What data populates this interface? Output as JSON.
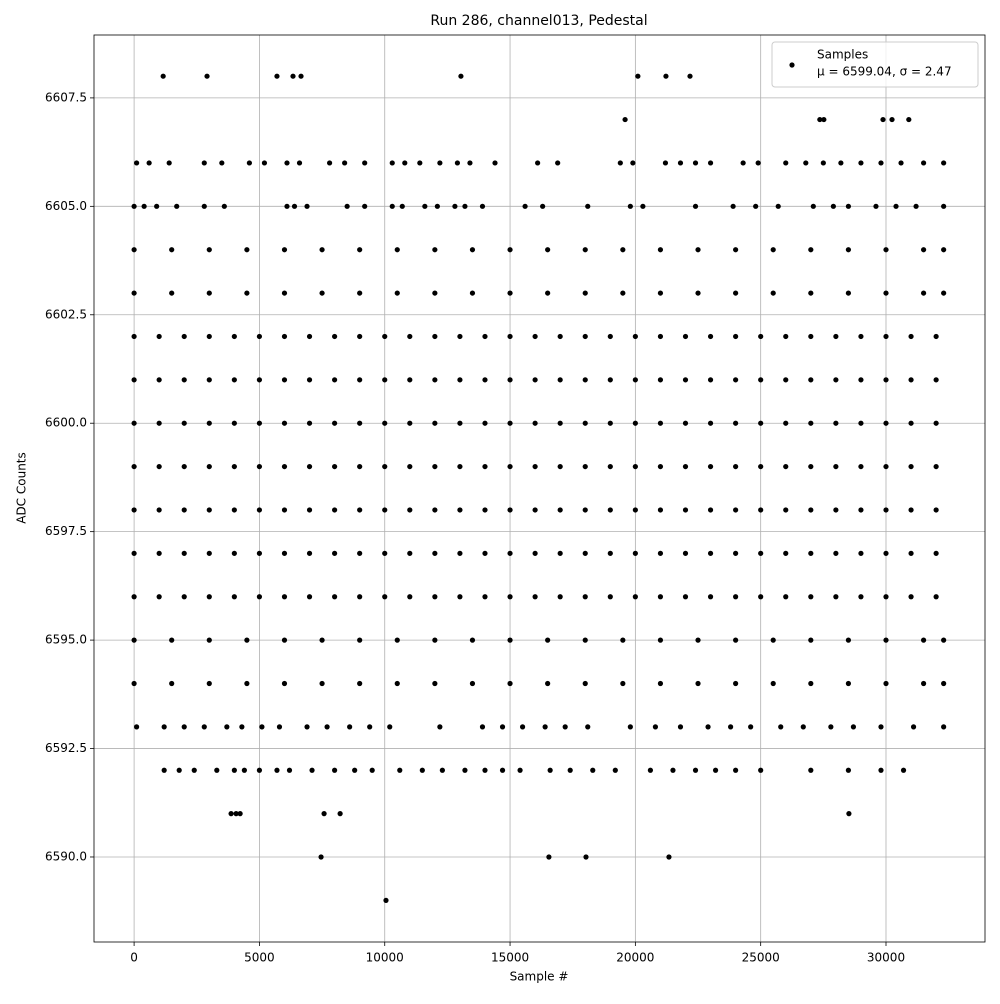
{
  "chart_data": {
    "type": "scatter",
    "title": "Run 286, channel013, Pedestal",
    "x_label": "Sample #",
    "y_label": "ADC Counts",
    "xlim": [
      -1600,
      33950
    ],
    "ylim": [
      6588.04,
      6608.95
    ],
    "xticks": [
      0,
      5000,
      10000,
      15000,
      20000,
      25000,
      30000
    ],
    "yticks": [
      {
        "value": 6590,
        "label": "6590.0"
      },
      6592.5,
      {
        "value": 6595,
        "label": "6595.0"
      },
      6597.5,
      {
        "value": 6600,
        "label": "6600.0"
      },
      6602.5,
      {
        "value": 6605,
        "label": "6605.0"
      },
      6607.5
    ],
    "grid": true,
    "legend": "upper right",
    "annotation": "μ = 6599.04, σ = 2.47",
    "x": [
      0,
      1000,
      2000,
      3000,
      4000,
      5000,
      6000,
      7000,
      8000,
      9000,
      10000,
      11000,
      12000,
      13000,
      14000,
      15000,
      16000,
      17000,
      18000,
      19000,
      20000,
      21000,
      22000,
      23000,
      24000,
      25000,
      26000,
      27000,
      28000,
      29000,
      30000,
      31000,
      32000,
      0,
      1000,
      2000,
      3000,
      4000,
      5000,
      6000,
      7000,
      8000,
      9000,
      10000,
      11000,
      12000,
      13000,
      14000,
      15000,
      16000,
      17000,
      18000,
      19000,
      20000,
      21000,
      22000,
      23000,
      24000,
      25000,
      26000,
      27000,
      28000,
      29000,
      30000,
      31000,
      32000,
      0,
      1000,
      2000,
      3000,
      4000,
      5000,
      6000,
      7000,
      8000,
      9000,
      10000,
      11000,
      12000,
      13000,
      14000,
      15000,
      16000,
      17000,
      18000,
      19000,
      20000,
      21000,
      22000,
      23000,
      24000,
      25000,
      26000,
      27000,
      28000,
      29000,
      30000,
      31000,
      32000,
      0,
      1000,
      2000,
      3000,
      4000,
      5000,
      6000,
      7000,
      8000,
      9000,
      10000,
      11000,
      12000,
      13000,
      14000,
      15000,
      16000,
      17000,
      18000,
      19000,
      20000,
      21000,
      22000,
      23000,
      24000,
      25000,
      26000,
      27000,
      28000,
      29000,
      30000,
      31000,
      32000,
      0,
      1000,
      2000,
      3000,
      4000,
      5000,
      6000,
      7000,
      8000,
      9000,
      10000,
      11000,
      12000,
      13000,
      14000,
      15000,
      16000,
      17000,
      18000,
      19000,
      20000,
      21000,
      22000,
      23000,
      24000,
      25000,
      26000,
      27000,
      28000,
      29000,
      30000,
      31000,
      32000,
      0,
      1000,
      2000,
      3000,
      4000,
      5000,
      6000,
      7000,
      8000,
      9000,
      10000,
      11000,
      12000,
      13000,
      14000,
      15000,
      16000,
      17000,
      18000,
      19000,
      20000,
      21000,
      22000,
      23000,
      24000,
      25000,
      26000,
      27000,
      28000,
      29000,
      30000,
      31000,
      32000,
      0,
      1000,
      2000,
      3000,
      4000,
      5000,
      6000,
      7000,
      8000,
      9000,
      10000,
      11000,
      12000,
      13000,
      14000,
      15000,
      16000,
      17000,
      18000,
      19000,
      20000,
      21000,
      22000,
      23000,
      24000,
      25000,
      26000,
      27000,
      28000,
      29000,
      30000,
      31000,
      32000,
      0,
      1500,
      3000,
      4500,
      6000,
      7500,
      9000,
      10500,
      12000,
      13500,
      15000,
      16500,
      18000,
      19500,
      21000,
      22500,
      24000,
      25500,
      27000,
      28500,
      30000,
      31500,
      32300,
      0,
      1500,
      3000,
      4500,
      6000,
      7500,
      9000,
      10500,
      12000,
      13500,
      15000,
      16500,
      18000,
      19500,
      21000,
      22500,
      24000,
      25500,
      27000,
      28500,
      30000,
      31500,
      32300,
      0,
      1500,
      3000,
      4500,
      6000,
      7500,
      9000,
      10500,
      12000,
      13500,
      15000,
      16500,
      18000,
      19500,
      21000,
      22500,
      24000,
      25500,
      27000,
      28500,
      30000,
      31500,
      32300,
      0,
      1500,
      3000,
      4500,
      6000,
      7500,
      9000,
      10500,
      12000,
      13500,
      15000,
      16500,
      18000,
      19500,
      21000,
      22500,
      24000,
      25500,
      27000,
      28500,
      30000,
      31500,
      32300,
      0,
      400,
      900,
      1700,
      2800,
      3600,
      6100,
      6400,
      6900,
      8500,
      9200,
      10300,
      10700,
      11600,
      12100,
      12800,
      13200,
      13900,
      15600,
      16300,
      18100,
      19800,
      20300,
      22400,
      23900,
      24800,
      25700,
      27100,
      27900,
      28500,
      29600,
      30400,
      31200,
      32300,
      100,
      600,
      1400,
      2800,
      3500,
      4600,
      5200,
      6100,
      6600,
      7800,
      8400,
      9200,
      10300,
      10800,
      11400,
      12200,
      12900,
      13400,
      14400,
      16100,
      16900,
      19400,
      19900,
      21200,
      21800,
      22400,
      23000,
      24300,
      24900,
      26000,
      26800,
      27500,
      28200,
      29000,
      29800,
      30600,
      31500,
      32300,
      100,
      1200,
      2000,
      2800,
      3700,
      4300,
      5100,
      5800,
      6900,
      7700,
      8600,
      9400,
      10200,
      12200,
      13900,
      14700,
      15500,
      16400,
      17200,
      18100,
      19800,
      20800,
      21800,
      22900,
      23800,
      24600,
      25800,
      26700,
      27800,
      28700,
      29800,
      31100,
      32300,
      1200,
      1800,
      2400,
      3300,
      4000,
      4400,
      5000,
      5700,
      6200,
      7100,
      8000,
      8800,
      9500,
      10600,
      11500,
      12300,
      13200,
      14000,
      14700,
      15400,
      16600,
      17400,
      18300,
      19200,
      20600,
      21500,
      22400,
      23200,
      24000,
      25000,
      27000,
      28500,
      29800,
      30700,
      1160,
      2910,
      5700,
      6340,
      6660,
      13040,
      20100,
      21220,
      22180,
      19590,
      27360,
      27520,
      29880,
      30240,
      30910,
      3870,
      4070,
      4230,
      7580,
      8220,
      28520,
      7460,
      16550,
      18030,
      21340,
      10050
    ],
    "series": [
      {
        "name": "Samples",
        "color": "#000000",
        "values": [
          6602,
          6602,
          6602,
          6602,
          6602,
          6602,
          6602,
          6602,
          6602,
          6602,
          6602,
          6602,
          6602,
          6602,
          6602,
          6602,
          6602,
          6602,
          6602,
          6602,
          6602,
          6602,
          6602,
          6602,
          6602,
          6602,
          6602,
          6602,
          6602,
          6602,
          6602,
          6602,
          6602,
          6601,
          6601,
          6601,
          6601,
          6601,
          6601,
          6601,
          6601,
          6601,
          6601,
          6601,
          6601,
          6601,
          6601,
          6601,
          6601,
          6601,
          6601,
          6601,
          6601,
          6601,
          6601,
          6601,
          6601,
          6601,
          6601,
          6601,
          6601,
          6601,
          6601,
          6601,
          6601,
          6601,
          6600,
          6600,
          6600,
          6600,
          6600,
          6600,
          6600,
          6600,
          6600,
          6600,
          6600,
          6600,
          6600,
          6600,
          6600,
          6600,
          6600,
          6600,
          6600,
          6600,
          6600,
          6600,
          6600,
          6600,
          6600,
          6600,
          6600,
          6600,
          6600,
          6600,
          6600,
          6600,
          6600,
          6599,
          6599,
          6599,
          6599,
          6599,
          6599,
          6599,
          6599,
          6599,
          6599,
          6599,
          6599,
          6599,
          6599,
          6599,
          6599,
          6599,
          6599,
          6599,
          6599,
          6599,
          6599,
          6599,
          6599,
          6599,
          6599,
          6599,
          6599,
          6599,
          6599,
          6599,
          6599,
          6599,
          6598,
          6598,
          6598,
          6598,
          6598,
          6598,
          6598,
          6598,
          6598,
          6598,
          6598,
          6598,
          6598,
          6598,
          6598,
          6598,
          6598,
          6598,
          6598,
          6598,
          6598,
          6598,
          6598,
          6598,
          6598,
          6598,
          6598,
          6598,
          6598,
          6598,
          6598,
          6598,
          6598,
          6597,
          6597,
          6597,
          6597,
          6597,
          6597,
          6597,
          6597,
          6597,
          6597,
          6597,
          6597,
          6597,
          6597,
          6597,
          6597,
          6597,
          6597,
          6597,
          6597,
          6597,
          6597,
          6597,
          6597,
          6597,
          6597,
          6597,
          6597,
          6597,
          6597,
          6597,
          6597,
          6597,
          6596,
          6596,
          6596,
          6596,
          6596,
          6596,
          6596,
          6596,
          6596,
          6596,
          6596,
          6596,
          6596,
          6596,
          6596,
          6596,
          6596,
          6596,
          6596,
          6596,
          6596,
          6596,
          6596,
          6596,
          6596,
          6596,
          6596,
          6596,
          6596,
          6596,
          6596,
          6596,
          6596,
          6603,
          6603,
          6603,
          6603,
          6603,
          6603,
          6603,
          6603,
          6603,
          6603,
          6603,
          6603,
          6603,
          6603,
          6603,
          6603,
          6603,
          6603,
          6603,
          6603,
          6603,
          6603,
          6603,
          6604,
          6604,
          6604,
          6604,
          6604,
          6604,
          6604,
          6604,
          6604,
          6604,
          6604,
          6604,
          6604,
          6604,
          6604,
          6604,
          6604,
          6604,
          6604,
          6604,
          6604,
          6604,
          6604,
          6595,
          6595,
          6595,
          6595,
          6595,
          6595,
          6595,
          6595,
          6595,
          6595,
          6595,
          6595,
          6595,
          6595,
          6595,
          6595,
          6595,
          6595,
          6595,
          6595,
          6595,
          6595,
          6595,
          6594,
          6594,
          6594,
          6594,
          6594,
          6594,
          6594,
          6594,
          6594,
          6594,
          6594,
          6594,
          6594,
          6594,
          6594,
          6594,
          6594,
          6594,
          6594,
          6594,
          6594,
          6594,
          6594,
          6605,
          6605,
          6605,
          6605,
          6605,
          6605,
          6605,
          6605,
          6605,
          6605,
          6605,
          6605,
          6605,
          6605,
          6605,
          6605,
          6605,
          6605,
          6605,
          6605,
          6605,
          6605,
          6605,
          6605,
          6605,
          6605,
          6605,
          6605,
          6605,
          6605,
          6605,
          6605,
          6605,
          6605,
          6606,
          6606,
          6606,
          6606,
          6606,
          6606,
          6606,
          6606,
          6606,
          6606,
          6606,
          6606,
          6606,
          6606,
          6606,
          6606,
          6606,
          6606,
          6606,
          6606,
          6606,
          6606,
          6606,
          6606,
          6606,
          6606,
          6606,
          6606,
          6606,
          6606,
          6606,
          6606,
          6606,
          6606,
          6606,
          6606,
          6606,
          6606,
          6593,
          6593,
          6593,
          6593,
          6593,
          6593,
          6593,
          6593,
          6593,
          6593,
          6593,
          6593,
          6593,
          6593,
          6593,
          6593,
          6593,
          6593,
          6593,
          6593,
          6593,
          6593,
          6593,
          6593,
          6593,
          6593,
          6593,
          6593,
          6593,
          6593,
          6593,
          6593,
          6593,
          6592,
          6592,
          6592,
          6592,
          6592,
          6592,
          6592,
          6592,
          6592,
          6592,
          6592,
          6592,
          6592,
          6592,
          6592,
          6592,
          6592,
          6592,
          6592,
          6592,
          6592,
          6592,
          6592,
          6592,
          6592,
          6592,
          6592,
          6592,
          6592,
          6592,
          6592,
          6592,
          6592,
          6592,
          6608,
          6608,
          6608,
          6608,
          6608,
          6608,
          6608,
          6608,
          6608,
          6607,
          6607,
          6607,
          6607,
          6607,
          6607,
          6591,
          6591,
          6591,
          6591,
          6591,
          6591,
          6590,
          6590,
          6590,
          6590,
          6589
        ]
      }
    ]
  }
}
